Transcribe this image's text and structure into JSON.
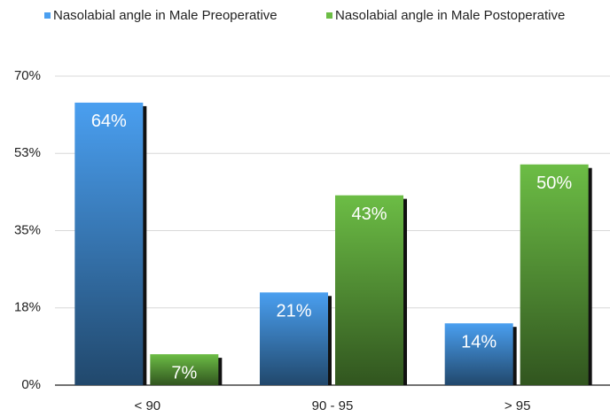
{
  "chart_data": {
    "type": "bar",
    "categories": [
      "< 90",
      "90 - 95",
      "> 95"
    ],
    "series": [
      {
        "name": "Nasolabial angle in Male Preoperative",
        "color": "#4a9ff0",
        "values": [
          64,
          21,
          14
        ],
        "value_labels": [
          "64%",
          "21%",
          "14%"
        ]
      },
      {
        "name": "Nasolabial angle in Male Postoperative",
        "color": "#6cbd45",
        "values": [
          7,
          43,
          50
        ],
        "value_labels": [
          "7%",
          "43%",
          "50%"
        ]
      }
    ],
    "ylim": [
      0,
      70
    ],
    "yticks": [
      {
        "value": 0,
        "label": "0%"
      },
      {
        "value": 17.5,
        "label": "18%"
      },
      {
        "value": 35,
        "label": "35%"
      },
      {
        "value": 52.5,
        "label": "53%"
      },
      {
        "value": 70,
        "label": "70%"
      }
    ],
    "grid": true,
    "legend": "top"
  }
}
